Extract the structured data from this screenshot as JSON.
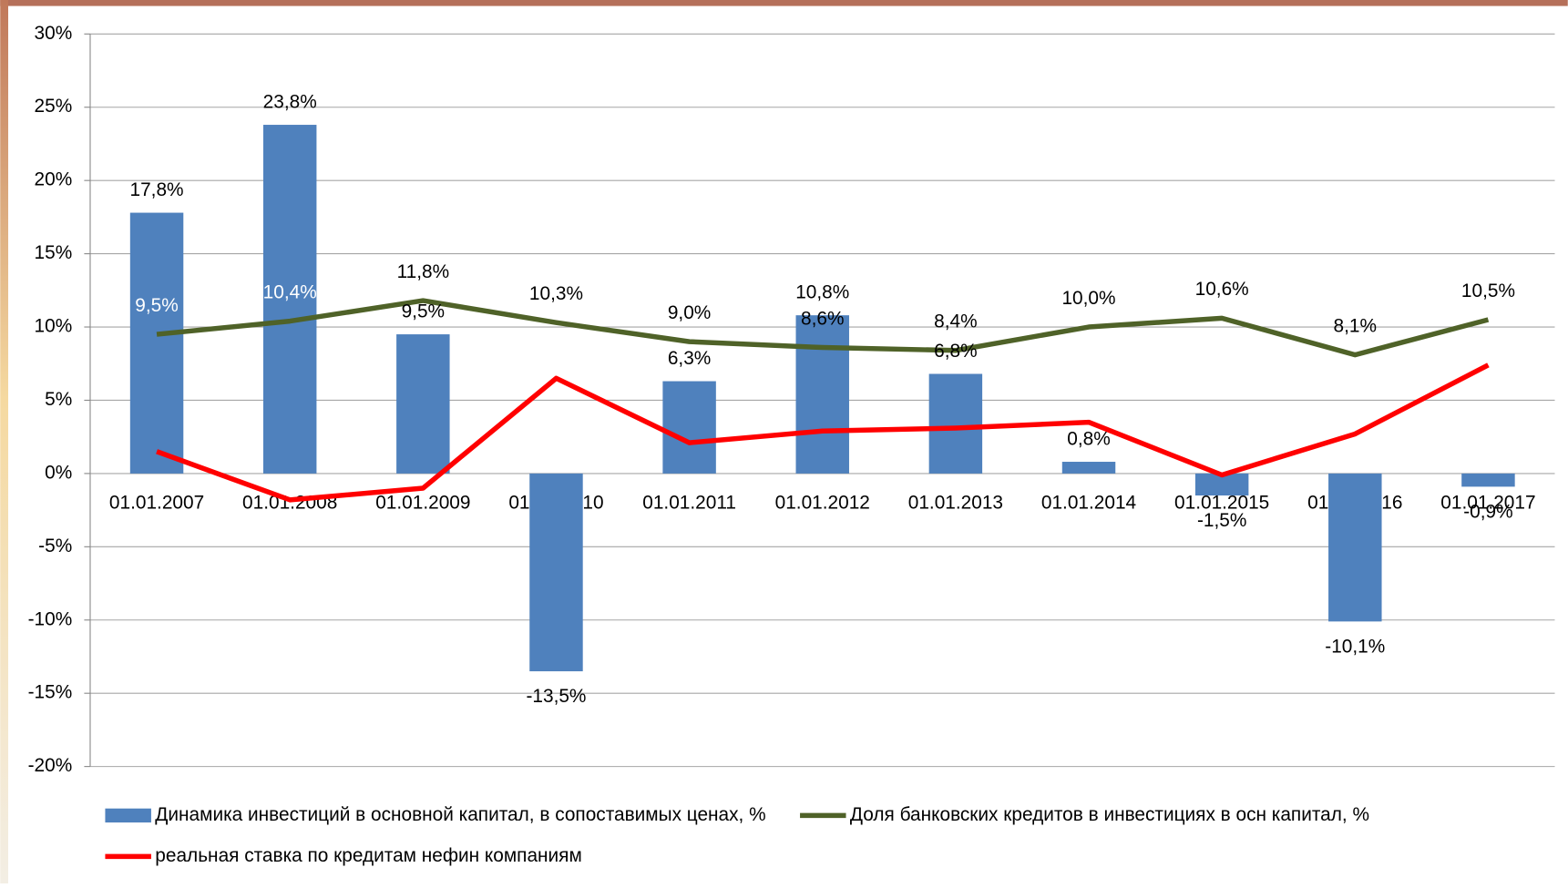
{
  "chart_data": {
    "type": "bar-line",
    "categories": [
      "01.01.2007",
      "01.01.2008",
      "01.01.2009",
      "01.01.2010",
      "01.01.2011",
      "01.01.2012",
      "01.01.2013",
      "01.01.2014",
      "01.01.2015",
      "01.01.2016",
      "01.01.2017"
    ],
    "series": [
      {
        "name": "Динамика инвестиций в основной капитал, в сопоставимых ценах, %",
        "type": "bar",
        "color": "#4f81bd",
        "values": [
          17.8,
          23.8,
          9.5,
          -13.5,
          6.3,
          10.8,
          6.8,
          0.8,
          -1.5,
          -10.1,
          -0.9
        ],
        "value_labels": [
          "17,8%",
          "23,8%",
          "9,5%",
          "-13,5%",
          "6,3%",
          "10,8%",
          "6,8%",
          "0,8%",
          "-1,5%",
          "-10,1%",
          "-0,9%"
        ]
      },
      {
        "name": "Доля банковских кредитов в инвестициях в осн капитал, %",
        "type": "line",
        "color": "#4f6228",
        "values": [
          9.5,
          10.4,
          11.8,
          10.3,
          9.0,
          8.6,
          8.4,
          10.0,
          10.6,
          8.1,
          10.5
        ],
        "value_labels": [
          "9,5%",
          "10,4%",
          "11,8%",
          "10,3%",
          "9,0%",
          "8,6%",
          "8,4%",
          "10,0%",
          "10,6%",
          "8,1%",
          "10,5%"
        ]
      },
      {
        "name": "реальная ставка по кредитам нефин компаниям",
        "type": "line",
        "color": "#ff0000",
        "values": [
          1.5,
          -1.8,
          -1.0,
          6.5,
          2.1,
          2.9,
          3.1,
          3.5,
          -0.1,
          2.7,
          7.4
        ]
      }
    ],
    "ylim": [
      -20,
      30
    ],
    "yticks": [
      {
        "value": -20,
        "label": "-20%"
      },
      {
        "value": -15,
        "label": "-15%"
      },
      {
        "value": -10,
        "label": "-10%"
      },
      {
        "value": -5,
        "label": "-5%"
      },
      {
        "value": 0,
        "label": "0%"
      },
      {
        "value": 5,
        "label": "5%"
      },
      {
        "value": 10,
        "label": "10%"
      },
      {
        "value": 15,
        "label": "15%"
      },
      {
        "value": 20,
        "label": "20%"
      },
      {
        "value": 25,
        "label": "25%"
      },
      {
        "value": 30,
        "label": "30%"
      }
    ],
    "grid": true
  }
}
